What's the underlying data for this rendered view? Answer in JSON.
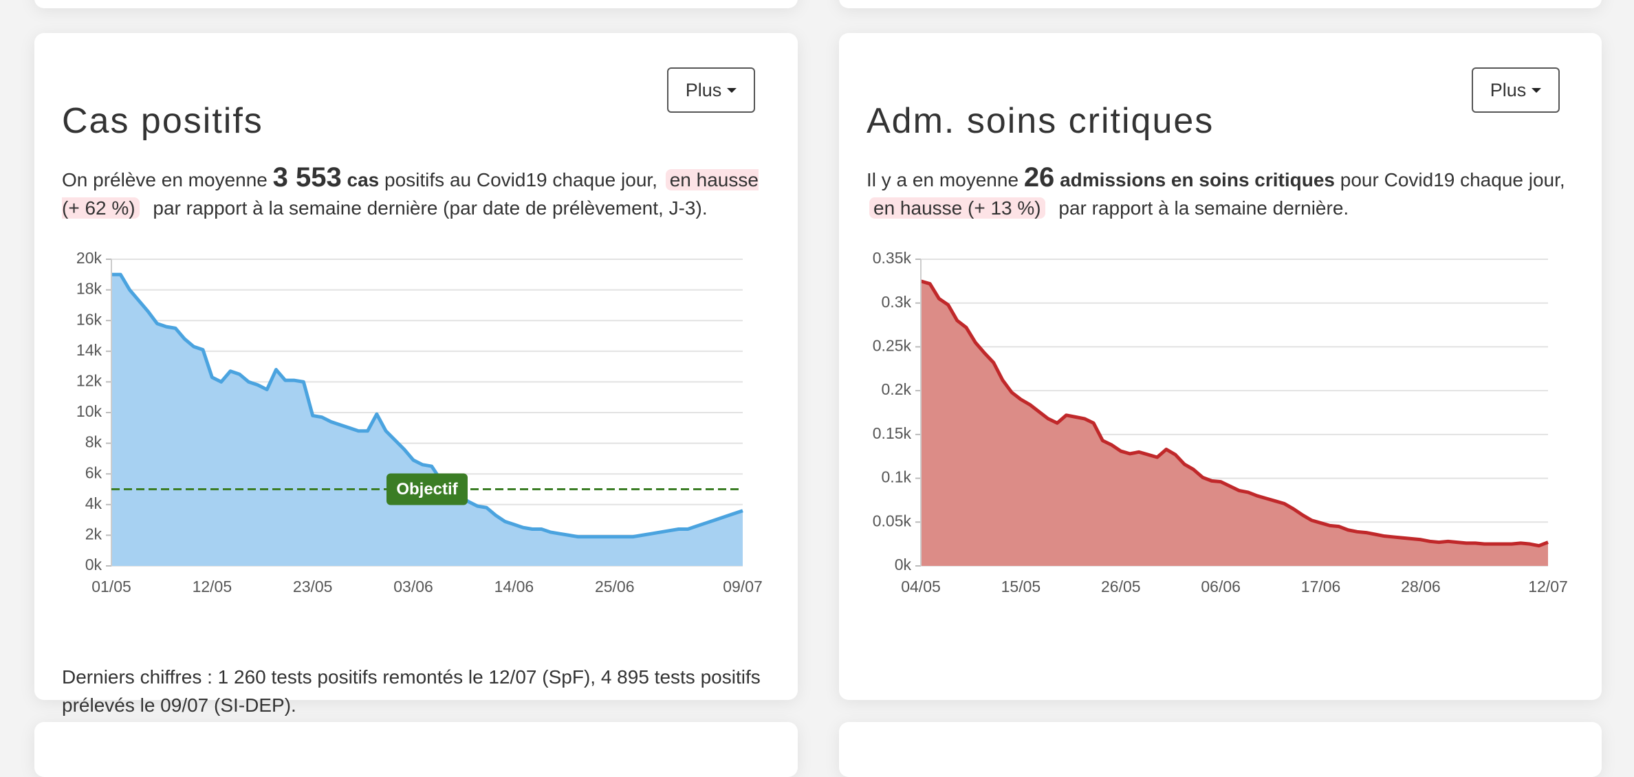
{
  "cards": [
    {
      "title": "Cas positifs",
      "button": "Plus",
      "summary": {
        "prefix": "On prélève en moyenne",
        "number": "3 553",
        "unit": "cas",
        "rest": "positifs au Covid19 chaque jour,",
        "trend": "en hausse (+ 62 %)",
        "suffix": "par rapport à la semaine dernière (par date de prélèvement, J-3)."
      },
      "footer": "Derniers chiffres : 1 260 tests positifs remontés le 12/07 (SpF), 4 895 tests positifs prélevés le 09/07 (SI-DEP)."
    },
    {
      "title": "Adm. soins critiques",
      "button": "Plus",
      "summary": {
        "prefix": "Il y a en moyenne",
        "number": "26",
        "unit": "admissions en soins critiques",
        "rest": "pour Covid19 chaque jour,",
        "trend": "en hausse (+ 13 %)",
        "suffix": "par rapport à la semaine dernière."
      }
    }
  ],
  "chart_data": [
    {
      "type": "line",
      "color": "#4aa3df",
      "fill": "#a7d1f2",
      "grid": true,
      "categories": [
        "01/05",
        null,
        null,
        null,
        null,
        null,
        null,
        null,
        null,
        null,
        null,
        "12/05",
        null,
        null,
        null,
        null,
        null,
        null,
        null,
        null,
        null,
        null,
        "23/05",
        null,
        null,
        null,
        null,
        null,
        null,
        null,
        null,
        null,
        null,
        "03/06",
        null,
        null,
        null,
        null,
        null,
        null,
        null,
        null,
        null,
        null,
        "14/06",
        null,
        null,
        null,
        null,
        null,
        null,
        null,
        null,
        null,
        null,
        "25/06",
        null,
        null,
        null,
        null,
        null,
        null,
        null,
        null,
        null,
        null,
        null,
        null,
        null,
        "09/07"
      ],
      "values": [
        19000,
        19000,
        18000,
        17300,
        16600,
        15800,
        15600,
        15500,
        14800,
        14300,
        14100,
        12300,
        12000,
        12700,
        12500,
        12000,
        11800,
        11500,
        12800,
        12100,
        12100,
        12000,
        9800,
        9700,
        9400,
        9200,
        9000,
        8800,
        8800,
        9900,
        8800,
        8200,
        7600,
        6900,
        6600,
        6500,
        5600,
        5200,
        4600,
        4200,
        3900,
        3800,
        3300,
        2900,
        2700,
        2500,
        2400,
        2400,
        2200,
        2100,
        2000,
        1900,
        1900,
        1900,
        1900,
        1900,
        1900,
        1900,
        2000,
        2100,
        2200,
        2300,
        2400,
        2400,
        2600,
        2800,
        3000,
        3200,
        3400,
        3600
      ],
      "ylim": [
        0,
        20000
      ],
      "yticks": [
        {
          "value": 0,
          "label": "0k"
        },
        {
          "value": 2000,
          "label": "2k"
        },
        {
          "value": 4000,
          "label": "4k"
        },
        {
          "value": 6000,
          "label": "6k"
        },
        {
          "value": 8000,
          "label": "8k"
        },
        {
          "value": 10000,
          "label": "10k"
        },
        {
          "value": 12000,
          "label": "12k"
        },
        {
          "value": 14000,
          "label": "14k"
        },
        {
          "value": 16000,
          "label": "16k"
        },
        {
          "value": 18000,
          "label": "18k"
        },
        {
          "value": 20000,
          "label": "20k"
        }
      ],
      "hline": {
        "value": 5000,
        "label": "Objectif",
        "color": "#3b7d25"
      }
    },
    {
      "type": "line",
      "color": "#c0282a",
      "fill": "#dc8c87",
      "grid": true,
      "categories": [
        "04/05",
        null,
        null,
        null,
        null,
        null,
        null,
        null,
        null,
        null,
        null,
        "15/05",
        null,
        null,
        null,
        null,
        null,
        null,
        null,
        null,
        null,
        null,
        "26/05",
        null,
        null,
        null,
        null,
        null,
        null,
        null,
        null,
        null,
        null,
        "06/06",
        null,
        null,
        null,
        null,
        null,
        null,
        null,
        null,
        null,
        null,
        "17/06",
        null,
        null,
        null,
        null,
        null,
        null,
        null,
        null,
        null,
        null,
        "28/06",
        null,
        null,
        null,
        null,
        null,
        null,
        null,
        null,
        null,
        null,
        null,
        null,
        null,
        "12/07"
      ],
      "values": [
        325,
        322,
        305,
        298,
        280,
        272,
        255,
        243,
        232,
        212,
        198,
        190,
        184,
        176,
        168,
        163,
        172,
        170,
        168,
        163,
        143,
        138,
        131,
        128,
        130,
        127,
        124,
        133,
        127,
        116,
        110,
        101,
        97,
        96,
        91,
        86,
        84,
        80,
        77,
        74,
        71,
        65,
        58,
        52,
        49,
        46,
        45,
        41,
        39,
        38,
        36,
        34,
        33,
        32,
        31,
        30,
        28,
        27,
        28,
        27,
        26,
        26,
        25,
        25,
        25,
        25,
        26,
        25,
        23,
        27
      ],
      "ylim": [
        0,
        350
      ],
      "yticks": [
        {
          "value": 0,
          "label": "0k"
        },
        {
          "value": 50,
          "label": "0.05k"
        },
        {
          "value": 100,
          "label": "0.1k"
        },
        {
          "value": 150,
          "label": "0.15k"
        },
        {
          "value": 200,
          "label": "0.2k"
        },
        {
          "value": 250,
          "label": "0.25k"
        },
        {
          "value": 300,
          "label": "0.3k"
        },
        {
          "value": 350,
          "label": "0.35k"
        }
      ]
    }
  ]
}
